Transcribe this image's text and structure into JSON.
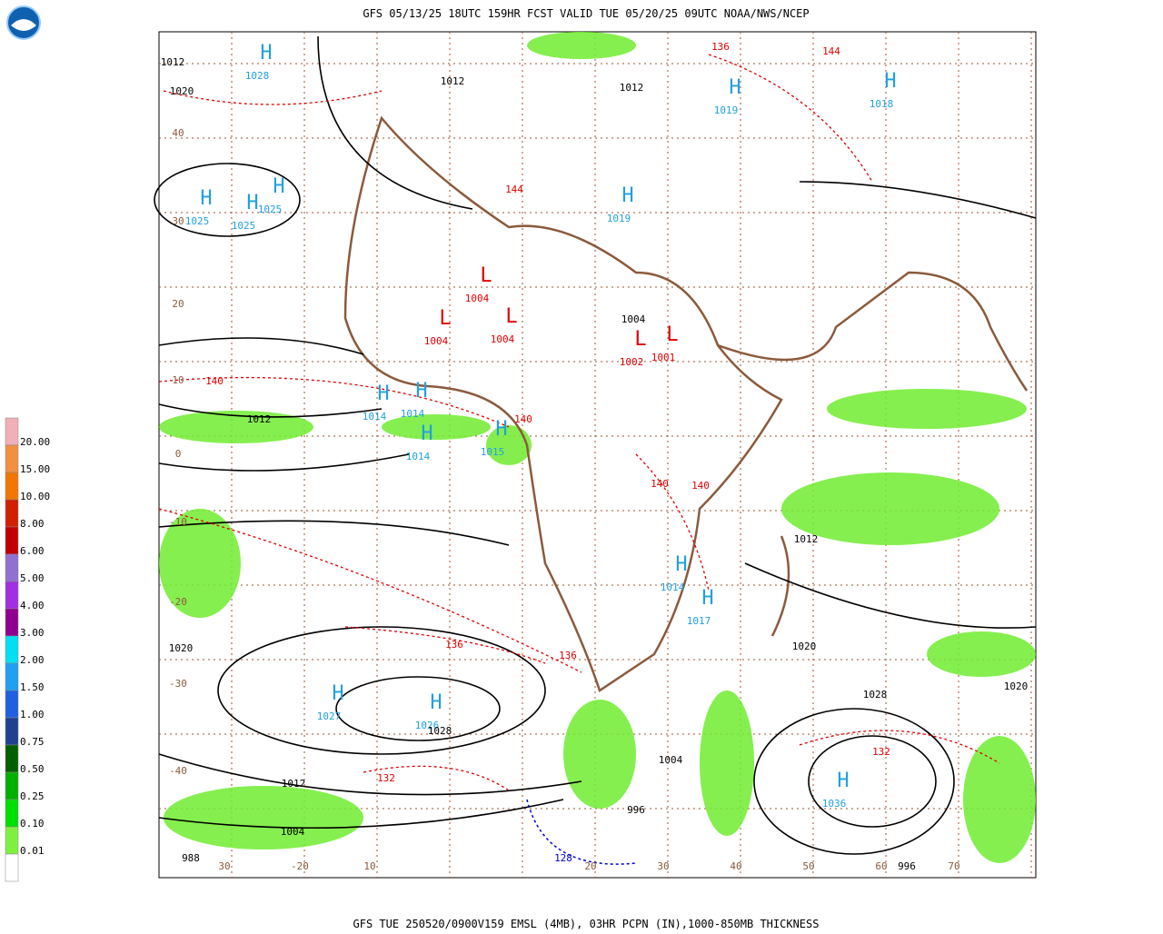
{
  "header": {
    "title": "GFS 05/13/25 18UTC 159HR FCST VALID TUE 05/20/25 09UTC NOAA/NWS/NCEP"
  },
  "footer": {
    "caption": "GFS TUE 250520/0900V159 EMSL (4MB), 03HR PCPN (IN),1000-850MB THICKNESS"
  },
  "legend": {
    "items": [
      {
        "label": "20.00",
        "color": "#f0b0b8"
      },
      {
        "label": "15.00",
        "color": "#f09040"
      },
      {
        "label": "10.00",
        "color": "#f07800"
      },
      {
        "label": "8.00",
        "color": "#d02000"
      },
      {
        "label": "6.00",
        "color": "#c00000"
      },
      {
        "label": "5.00",
        "color": "#9070d0"
      },
      {
        "label": "4.00",
        "color": "#a030e0"
      },
      {
        "label": "3.00",
        "color": "#900090"
      },
      {
        "label": "2.00",
        "color": "#00e0f0"
      },
      {
        "label": "1.50",
        "color": "#20a0f0"
      },
      {
        "label": "1.00",
        "color": "#2060e0"
      },
      {
        "label": "0.75",
        "color": "#204090"
      },
      {
        "label": "0.50",
        "color": "#006000"
      },
      {
        "label": "0.25",
        "color": "#00b000"
      },
      {
        "label": "0.10",
        "color": "#00e000"
      },
      {
        "label": "0.01",
        "color": "#80f040"
      }
    ]
  },
  "pressure_centers": [
    {
      "letter": "H",
      "value": "1028"
    },
    {
      "letter": "H",
      "value": "1019"
    },
    {
      "letter": "H",
      "value": "1018"
    },
    {
      "letter": "H",
      "value": "1025"
    },
    {
      "letter": "H",
      "value": "1025"
    },
    {
      "letter": "H",
      "value": "1025"
    },
    {
      "letter": "H",
      "value": "1019"
    },
    {
      "letter": "H",
      "value": "1014"
    },
    {
      "letter": "H",
      "value": "1014"
    },
    {
      "letter": "H",
      "value": "1014"
    },
    {
      "letter": "H",
      "value": "1015"
    },
    {
      "letter": "H",
      "value": "1027"
    },
    {
      "letter": "H",
      "value": "1026"
    },
    {
      "letter": "H",
      "value": "1014"
    },
    {
      "letter": "H",
      "value": "1017"
    },
    {
      "letter": "H",
      "value": "1036"
    },
    {
      "letter": "L",
      "value": "1004"
    },
    {
      "letter": "L",
      "value": "1004"
    },
    {
      "letter": "L",
      "value": "1004"
    },
    {
      "letter": "L",
      "value": "1002"
    },
    {
      "letter": "L",
      "value": "1001"
    }
  ],
  "isobar_labels": [
    "1012",
    "1020",
    "1012",
    "1012",
    "1004",
    "1012",
    "1020",
    "1028",
    "1012",
    "1004",
    "996",
    "1020",
    "1028",
    "1020",
    "1012",
    "1004",
    "996",
    "988"
  ],
  "thickness_labels": [
    "136",
    "144",
    "144",
    "140",
    "140",
    "140",
    "140",
    "136",
    "136",
    "132",
    "132",
    "128"
  ],
  "latitude_labels": [
    "40",
    "30",
    "20",
    "10",
    "0",
    "-10",
    "-20",
    "-30",
    "-40"
  ],
  "longitude_labels": [
    "30",
    "-20",
    "10",
    "20",
    "30",
    "40",
    "50",
    "60",
    "70"
  ]
}
